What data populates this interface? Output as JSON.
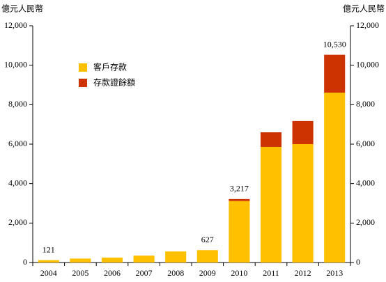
{
  "chart_data": {
    "type": "stacked-bar",
    "y_label": "億元人民幣",
    "y2_label": "億元人民幣",
    "categories": [
      "2004",
      "2005",
      "2006",
      "2007",
      "2008",
      "2009",
      "2010",
      "2011",
      "2012",
      "2013"
    ],
    "series": [
      {
        "name": "客戶存款",
        "color": "#ffc000",
        "values": [
          121,
          200,
          250,
          350,
          560,
          627,
          3117,
          5860,
          6000,
          8610
        ]
      },
      {
        "name": "存款證餘額",
        "color": "#cc3300",
        "values": [
          0,
          0,
          0,
          0,
          0,
          0,
          100,
          740,
          1170,
          1920
        ]
      }
    ],
    "totals": [
      121,
      null,
      null,
      null,
      null,
      627,
      3217,
      null,
      null,
      10530
    ],
    "total_labels": [
      "121",
      null,
      null,
      null,
      null,
      "627",
      "3,217",
      null,
      null,
      "10,530"
    ],
    "ylim": [
      0,
      12000
    ],
    "yticks": [
      0,
      {
        "value": 2000,
        "label": "2,000"
      },
      {
        "value": 4000,
        "label": "4,000"
      },
      {
        "value": 6000,
        "label": "6,000"
      },
      {
        "value": 8000,
        "label": "8,000"
      },
      {
        "value": 10000,
        "label": "10,000"
      },
      {
        "value": 12000,
        "label": "12,000"
      }
    ],
    "y2lim": [
      0,
      12000
    ],
    "y2ticks": [
      0,
      {
        "value": 2000,
        "label": "2,000"
      },
      {
        "value": 4000,
        "label": "4,000"
      },
      {
        "value": 6000,
        "label": "6,000"
      },
      {
        "value": 8000,
        "label": "8,000"
      },
      {
        "value": 10000,
        "label": "10,000"
      },
      {
        "value": 12000,
        "label": "12,000"
      }
    ],
    "legend": "upper-left",
    "grid": false
  }
}
